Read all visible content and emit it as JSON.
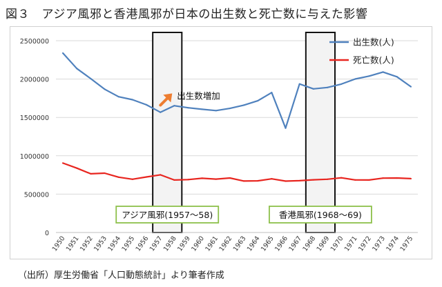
{
  "figure": {
    "title": "図３　アジア風邪と香港風邪が日本の出生数と死亡数に与えた影響",
    "source": "（出所）厚生労働省「人口動態統計」より筆者作成"
  },
  "chart_data": {
    "type": "line",
    "x": [
      "1950",
      "1951",
      "1952",
      "1953",
      "1954",
      "1955",
      "1956",
      "1957",
      "1958",
      "1959",
      "1960",
      "1961",
      "1962",
      "1963",
      "1964",
      "1965",
      "1966",
      "1967",
      "1968",
      "1969",
      "1970",
      "1971",
      "1972",
      "1973",
      "1974",
      "1975"
    ],
    "series": [
      {
        "name": "出生数(人)",
        "color": "#4f81bd",
        "values": [
          2338000,
          2138000,
          2005000,
          1868000,
          1770000,
          1731000,
          1665000,
          1567000,
          1653000,
          1626000,
          1606000,
          1589000,
          1618000,
          1660000,
          1717000,
          1824000,
          1361000,
          1936000,
          1872000,
          1890000,
          1934000,
          2001000,
          2039000,
          2092000,
          2030000,
          1901000
        ]
      },
      {
        "name": "死亡数(人)",
        "color": "#e8251f",
        "values": [
          905000,
          839000,
          765000,
          773000,
          721000,
          694000,
          724000,
          752000,
          684000,
          690000,
          707000,
          696000,
          710000,
          671000,
          674000,
          700000,
          670000,
          675000,
          687000,
          694000,
          713000,
          685000,
          684000,
          709000,
          710000,
          702000
        ]
      }
    ],
    "ylim": [
      0,
      2500000
    ],
    "yticks": [
      "0",
      "500000",
      "1000000",
      "1500000",
      "2000000",
      "2500000"
    ],
    "grid": "horizontal",
    "legend": "top-right",
    "highlight_colors": {
      "band_fill": "#f3f3f3",
      "band_stroke": "#111111",
      "label_border": "#8dc04a",
      "arrow": "#ed7d31"
    },
    "highlight_periods": [
      {
        "label": "アジア風邪(1957〜58)",
        "from": "1957",
        "to": "1958"
      },
      {
        "label": "香港風邪(1968〜69)",
        "from": "1968",
        "to": "1969"
      }
    ],
    "annotations": [
      {
        "text": "出生数増加",
        "year": "1958",
        "value": 1750000
      }
    ]
  }
}
